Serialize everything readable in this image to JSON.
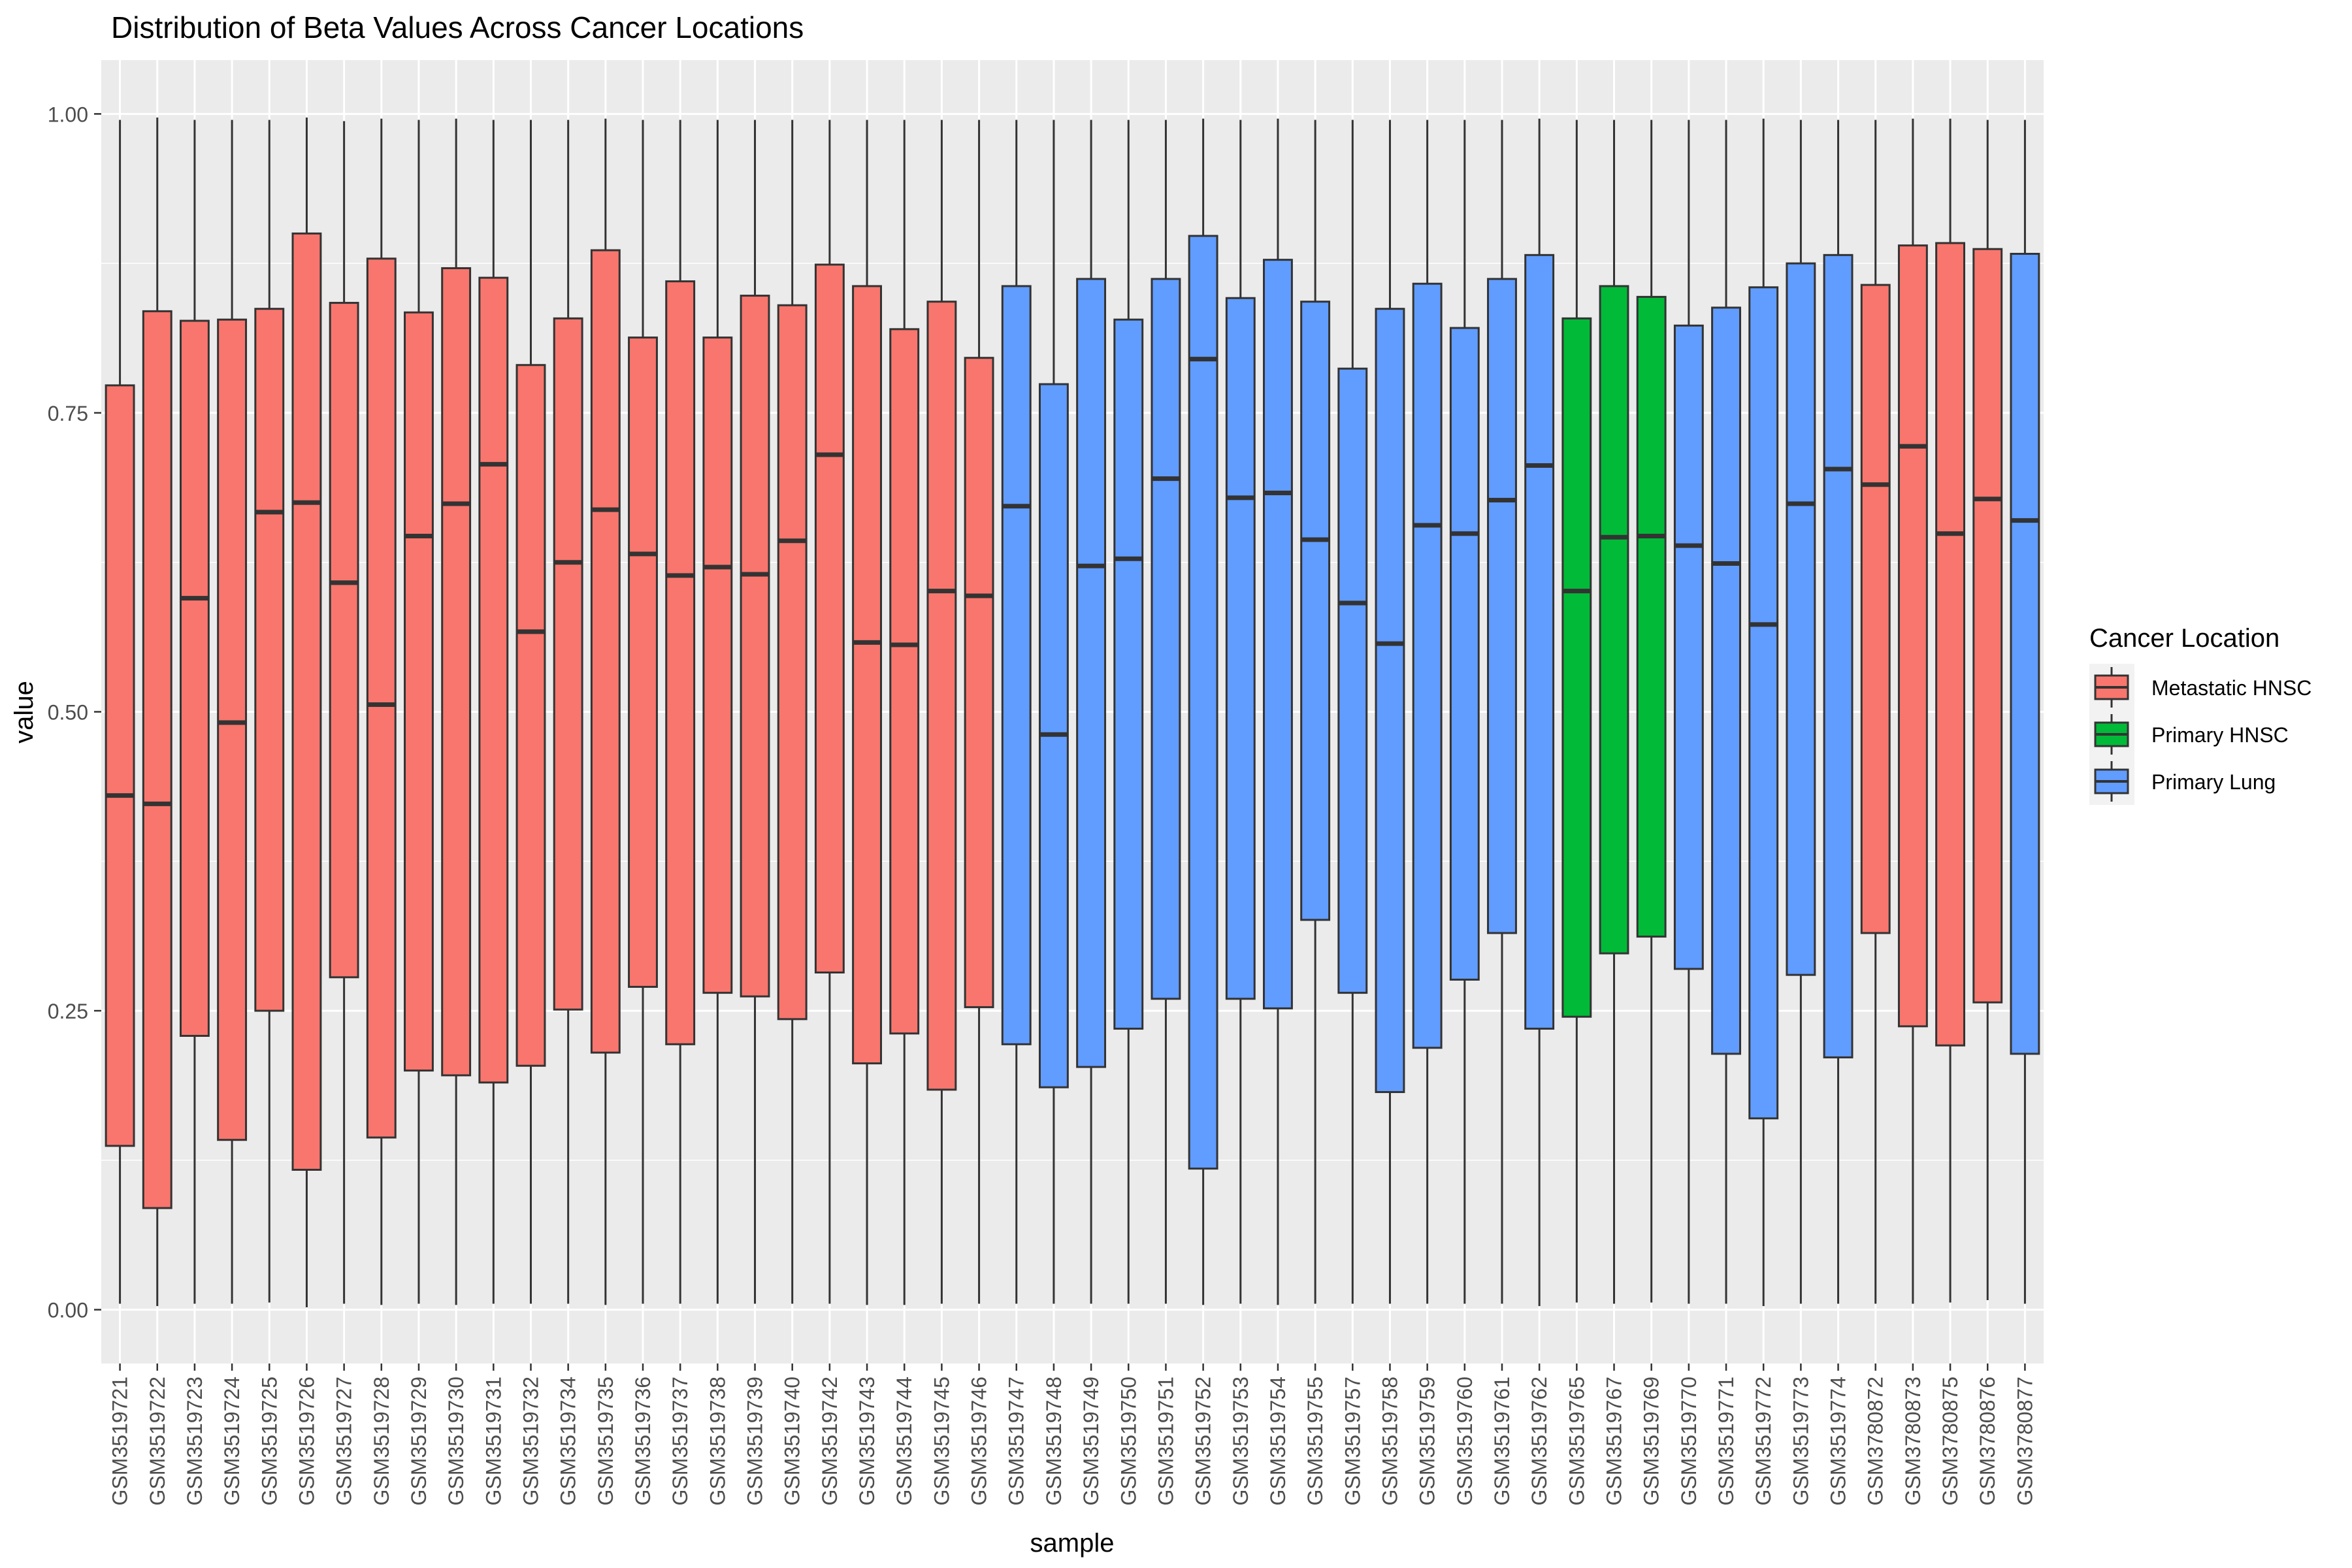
{
  "chart_data": {
    "type": "boxplot",
    "title": "Distribution of Beta Values Across Cancer Locations",
    "xlabel": "sample",
    "ylabel": "value",
    "ylim": [
      -0.045,
      1.045
    ],
    "yticks": [
      0.0,
      0.25,
      0.5,
      0.75,
      1.0
    ],
    "ytick_labels": [
      "0.00",
      "0.25",
      "0.50",
      "0.75",
      "1.00"
    ],
    "grid": true,
    "legend": {
      "title": "Cancer Location",
      "position": "right",
      "entries": [
        {
          "name": "Metastatic HNSC",
          "color": "#F8766D"
        },
        {
          "name": "Primary HNSC",
          "color": "#00BA38"
        },
        {
          "name": "Primary Lung",
          "color": "#619CFF"
        }
      ]
    },
    "samples": [
      {
        "sample": "GSM3519721",
        "group": "Metastatic HNSC",
        "min": 0.005,
        "q1": 0.137,
        "median": 0.43,
        "q3": 0.773,
        "max": 0.995
      },
      {
        "sample": "GSM3519722",
        "group": "Metastatic HNSC",
        "min": 0.003,
        "q1": 0.085,
        "median": 0.423,
        "q3": 0.835,
        "max": 0.997
      },
      {
        "sample": "GSM3519723",
        "group": "Metastatic HNSC",
        "min": 0.005,
        "q1": 0.229,
        "median": 0.595,
        "q3": 0.827,
        "max": 0.995
      },
      {
        "sample": "GSM3519724",
        "group": "Metastatic HNSC",
        "min": 0.005,
        "q1": 0.142,
        "median": 0.491,
        "q3": 0.828,
        "max": 0.995
      },
      {
        "sample": "GSM3519725",
        "group": "Metastatic HNSC",
        "min": 0.006,
        "q1": 0.25,
        "median": 0.667,
        "q3": 0.837,
        "max": 0.995
      },
      {
        "sample": "GSM3519726",
        "group": "Metastatic HNSC",
        "min": 0.002,
        "q1": 0.117,
        "median": 0.675,
        "q3": 0.9,
        "max": 0.997
      },
      {
        "sample": "GSM3519727",
        "group": "Metastatic HNSC",
        "min": 0.005,
        "q1": 0.278,
        "median": 0.608,
        "q3": 0.842,
        "max": 0.994
      },
      {
        "sample": "GSM3519728",
        "group": "Metastatic HNSC",
        "min": 0.004,
        "q1": 0.144,
        "median": 0.506,
        "q3": 0.879,
        "max": 0.996
      },
      {
        "sample": "GSM3519729",
        "group": "Metastatic HNSC",
        "min": 0.005,
        "q1": 0.2,
        "median": 0.647,
        "q3": 0.834,
        "max": 0.995
      },
      {
        "sample": "GSM3519730",
        "group": "Metastatic HNSC",
        "min": 0.004,
        "q1": 0.196,
        "median": 0.674,
        "q3": 0.871,
        "max": 0.996
      },
      {
        "sample": "GSM3519731",
        "group": "Metastatic HNSC",
        "min": 0.005,
        "q1": 0.19,
        "median": 0.707,
        "q3": 0.863,
        "max": 0.995
      },
      {
        "sample": "GSM3519732",
        "group": "Metastatic HNSC",
        "min": 0.005,
        "q1": 0.204,
        "median": 0.567,
        "q3": 0.79,
        "max": 0.995
      },
      {
        "sample": "GSM3519734",
        "group": "Metastatic HNSC",
        "min": 0.005,
        "q1": 0.251,
        "median": 0.625,
        "q3": 0.829,
        "max": 0.995
      },
      {
        "sample": "GSM3519735",
        "group": "Metastatic HNSC",
        "min": 0.004,
        "q1": 0.215,
        "median": 0.669,
        "q3": 0.886,
        "max": 0.996
      },
      {
        "sample": "GSM3519736",
        "group": "Metastatic HNSC",
        "min": 0.005,
        "q1": 0.27,
        "median": 0.632,
        "q3": 0.813,
        "max": 0.995
      },
      {
        "sample": "GSM3519737",
        "group": "Metastatic HNSC",
        "min": 0.005,
        "q1": 0.222,
        "median": 0.614,
        "q3": 0.86,
        "max": 0.995
      },
      {
        "sample": "GSM3519738",
        "group": "Metastatic HNSC",
        "min": 0.005,
        "q1": 0.265,
        "median": 0.621,
        "q3": 0.813,
        "max": 0.995
      },
      {
        "sample": "GSM3519739",
        "group": "Metastatic HNSC",
        "min": 0.005,
        "q1": 0.262,
        "median": 0.615,
        "q3": 0.848,
        "max": 0.995
      },
      {
        "sample": "GSM3519740",
        "group": "Metastatic HNSC",
        "min": 0.005,
        "q1": 0.243,
        "median": 0.643,
        "q3": 0.84,
        "max": 0.995
      },
      {
        "sample": "GSM3519742",
        "group": "Metastatic HNSC",
        "min": 0.005,
        "q1": 0.282,
        "median": 0.715,
        "q3": 0.874,
        "max": 0.995
      },
      {
        "sample": "GSM3519743",
        "group": "Metastatic HNSC",
        "min": 0.004,
        "q1": 0.206,
        "median": 0.558,
        "q3": 0.856,
        "max": 0.995
      },
      {
        "sample": "GSM3519744",
        "group": "Metastatic HNSC",
        "min": 0.004,
        "q1": 0.231,
        "median": 0.556,
        "q3": 0.82,
        "max": 0.995
      },
      {
        "sample": "GSM3519745",
        "group": "Metastatic HNSC",
        "min": 0.005,
        "q1": 0.184,
        "median": 0.601,
        "q3": 0.843,
        "max": 0.995
      },
      {
        "sample": "GSM3519746",
        "group": "Metastatic HNSC",
        "min": 0.005,
        "q1": 0.253,
        "median": 0.597,
        "q3": 0.796,
        "max": 0.995
      },
      {
        "sample": "GSM3519747",
        "group": "Primary Lung",
        "min": 0.005,
        "q1": 0.222,
        "median": 0.672,
        "q3": 0.856,
        "max": 0.995
      },
      {
        "sample": "GSM3519748",
        "group": "Primary Lung",
        "min": 0.005,
        "q1": 0.186,
        "median": 0.481,
        "q3": 0.774,
        "max": 0.995
      },
      {
        "sample": "GSM3519749",
        "group": "Primary Lung",
        "min": 0.005,
        "q1": 0.203,
        "median": 0.622,
        "q3": 0.862,
        "max": 0.995
      },
      {
        "sample": "GSM3519750",
        "group": "Primary Lung",
        "min": 0.005,
        "q1": 0.235,
        "median": 0.628,
        "q3": 0.828,
        "max": 0.995
      },
      {
        "sample": "GSM3519751",
        "group": "Primary Lung",
        "min": 0.005,
        "q1": 0.26,
        "median": 0.695,
        "q3": 0.862,
        "max": 0.995
      },
      {
        "sample": "GSM3519752",
        "group": "Primary Lung",
        "min": 0.004,
        "q1": 0.118,
        "median": 0.795,
        "q3": 0.898,
        "max": 0.996
      },
      {
        "sample": "GSM3519753",
        "group": "Primary Lung",
        "min": 0.005,
        "q1": 0.26,
        "median": 0.679,
        "q3": 0.846,
        "max": 0.995
      },
      {
        "sample": "GSM3519754",
        "group": "Primary Lung",
        "min": 0.004,
        "q1": 0.252,
        "median": 0.683,
        "q3": 0.878,
        "max": 0.996
      },
      {
        "sample": "GSM3519755",
        "group": "Primary Lung",
        "min": 0.005,
        "q1": 0.326,
        "median": 0.644,
        "q3": 0.843,
        "max": 0.995
      },
      {
        "sample": "GSM3519757",
        "group": "Primary Lung",
        "min": 0.005,
        "q1": 0.265,
        "median": 0.591,
        "q3": 0.787,
        "max": 0.995
      },
      {
        "sample": "GSM3519758",
        "group": "Primary Lung",
        "min": 0.005,
        "q1": 0.182,
        "median": 0.557,
        "q3": 0.837,
        "max": 0.995
      },
      {
        "sample": "GSM3519759",
        "group": "Primary Lung",
        "min": 0.005,
        "q1": 0.219,
        "median": 0.656,
        "q3": 0.858,
        "max": 0.995
      },
      {
        "sample": "GSM3519760",
        "group": "Primary Lung",
        "min": 0.005,
        "q1": 0.276,
        "median": 0.649,
        "q3": 0.821,
        "max": 0.995
      },
      {
        "sample": "GSM3519761",
        "group": "Primary Lung",
        "min": 0.005,
        "q1": 0.315,
        "median": 0.677,
        "q3": 0.862,
        "max": 0.995
      },
      {
        "sample": "GSM3519762",
        "group": "Primary Lung",
        "min": 0.003,
        "q1": 0.235,
        "median": 0.706,
        "q3": 0.882,
        "max": 0.996
      },
      {
        "sample": "GSM3519765",
        "group": "Primary HNSC",
        "min": 0.006,
        "q1": 0.245,
        "median": 0.601,
        "q3": 0.829,
        "max": 0.995
      },
      {
        "sample": "GSM3519767",
        "group": "Primary HNSC",
        "min": 0.005,
        "q1": 0.298,
        "median": 0.646,
        "q3": 0.856,
        "max": 0.995
      },
      {
        "sample": "GSM3519769",
        "group": "Primary HNSC",
        "min": 0.006,
        "q1": 0.312,
        "median": 0.647,
        "q3": 0.847,
        "max": 0.995
      },
      {
        "sample": "GSM3519770",
        "group": "Primary Lung",
        "min": 0.005,
        "q1": 0.285,
        "median": 0.639,
        "q3": 0.823,
        "max": 0.995
      },
      {
        "sample": "GSM3519771",
        "group": "Primary Lung",
        "min": 0.005,
        "q1": 0.214,
        "median": 0.624,
        "q3": 0.838,
        "max": 0.995
      },
      {
        "sample": "GSM3519772",
        "group": "Primary Lung",
        "min": 0.003,
        "q1": 0.16,
        "median": 0.573,
        "q3": 0.855,
        "max": 0.996
      },
      {
        "sample": "GSM3519773",
        "group": "Primary Lung",
        "min": 0.005,
        "q1": 0.28,
        "median": 0.674,
        "q3": 0.875,
        "max": 0.995
      },
      {
        "sample": "GSM3519774",
        "group": "Primary Lung",
        "min": 0.005,
        "q1": 0.211,
        "median": 0.703,
        "q3": 0.882,
        "max": 0.995
      },
      {
        "sample": "GSM3780872",
        "group": "Metastatic HNSC",
        "min": 0.005,
        "q1": 0.315,
        "median": 0.69,
        "q3": 0.857,
        "max": 0.995
      },
      {
        "sample": "GSM3780873",
        "group": "Metastatic HNSC",
        "min": 0.005,
        "q1": 0.237,
        "median": 0.722,
        "q3": 0.89,
        "max": 0.996
      },
      {
        "sample": "GSM3780875",
        "group": "Metastatic HNSC",
        "min": 0.006,
        "q1": 0.221,
        "median": 0.649,
        "q3": 0.892,
        "max": 0.996
      },
      {
        "sample": "GSM3780876",
        "group": "Metastatic HNSC",
        "min": 0.008,
        "q1": 0.257,
        "median": 0.678,
        "q3": 0.887,
        "max": 0.995
      },
      {
        "sample": "GSM3780877",
        "group": "Primary Lung",
        "min": 0.005,
        "q1": 0.214,
        "median": 0.66,
        "q3": 0.883,
        "max": 0.995
      }
    ]
  }
}
